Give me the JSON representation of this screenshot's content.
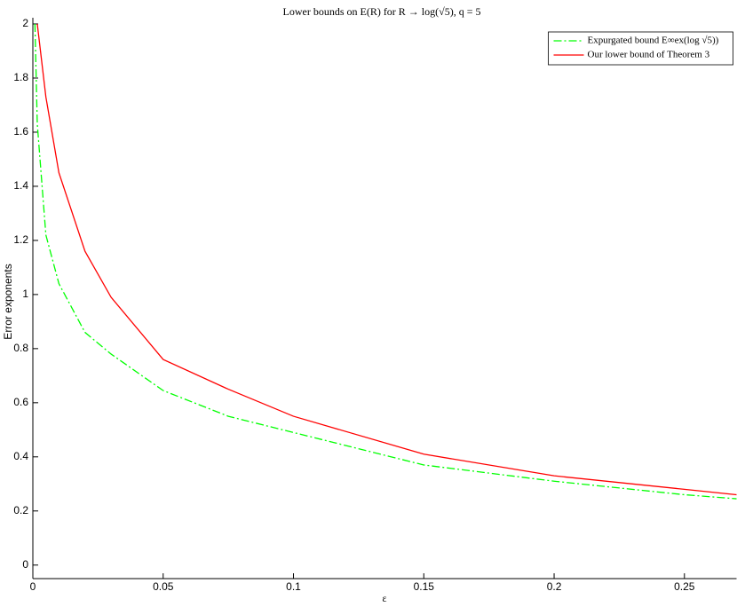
{
  "chart_data": {
    "type": "line",
    "title": "Lower bounds on E(R) for R → log(√5), q = 5",
    "x_label": "ε",
    "y_label": "Error exponents",
    "x": [
      0.0008,
      0.0017,
      0.005,
      0.01,
      0.02,
      0.03,
      0.05,
      0.075,
      0.1,
      0.15,
      0.2,
      0.25,
      0.27
    ],
    "series": [
      {
        "name": "Expurgated bound E∞ex(log √5))",
        "color": "#00ff00",
        "dash": "dash-dot",
        "values": [
          2,
          1.63,
          1.22,
          1.04,
          0.86,
          0.78,
          0.645,
          0.55,
          0.49,
          0.37,
          0.31,
          0.26,
          0.245
        ]
      },
      {
        "name": "Our lower bound of Theorem 3",
        "color": "#ff0000",
        "dash": "solid",
        "values": [
          null,
          2,
          1.73,
          1.45,
          1.16,
          0.99,
          0.76,
          0.65,
          0.55,
          0.41,
          0.33,
          0.28,
          0.26
        ]
      }
    ],
    "xlim": [
      0,
      0.27
    ],
    "ylim": [
      -0.05,
      2
    ],
    "xticks": [
      0,
      0.05,
      0.1,
      0.15,
      0.2,
      0.25
    ],
    "yticks": [
      0,
      0.2,
      0.4,
      0.6,
      0.8,
      1,
      1.2,
      1.4,
      1.6,
      1.8,
      2
    ],
    "legend": "upper-right"
  }
}
